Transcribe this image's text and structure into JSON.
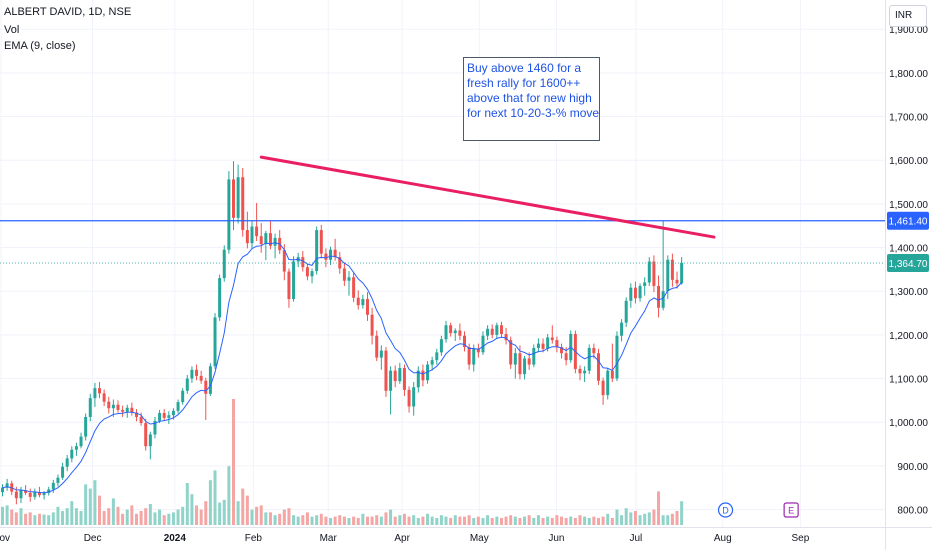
{
  "header": {
    "symbol_line": "ALBERT DAVID, 1D, NSE",
    "volume_label": "Vol",
    "ema_label": "EMA (9, close)"
  },
  "currency": "INR",
  "note": {
    "lines": [
      "Buy above 1460 for a",
      "fresh rally for 1600++",
      "above that for new high",
      "for next 10-20-3-% move"
    ]
  },
  "colors": {
    "up": "#26a69a",
    "down": "#ef5350",
    "vol_up": "#8fd3c9",
    "vol_down": "#f5a5a3",
    "ema": "#2962ff",
    "resistance_line": "#2962ff",
    "trend_line": "#e91e63",
    "last_price_label": "#26a69a",
    "resistance_label": "#2962ff",
    "grid": "#f0f3fa",
    "axis_text": "#131722"
  },
  "chart_data": {
    "type": "candlestick",
    "title": "ALBERT DAVID, 1D, NSE",
    "y_axis": {
      "min": 760,
      "max": 1960,
      "ticks": [
        800,
        900,
        1000,
        1100,
        1200,
        1300,
        1400,
        1500,
        1600,
        1700,
        1800,
        1900
      ],
      "tick_labels": [
        "800.00",
        "900.00",
        "1,000.00",
        "1,100.00",
        "1,200.00",
        "1,300.00",
        "1,400.00",
        "1,500.00",
        "1,600.00",
        "1,700.00",
        "1,800.00",
        "1,900.00"
      ]
    },
    "x_axis": {
      "labels": [
        "Nov",
        "Dec",
        "2024",
        "Feb",
        "Mar",
        "Apr",
        "May",
        "Jun",
        "Jul",
        "Aug",
        "Sep"
      ],
      "label_positions": [
        -0.3,
        19.5,
        37.3,
        54.3,
        70.5,
        86.5,
        103.2,
        119.9,
        137.1,
        155.9,
        172.7
      ]
    },
    "horizontal_line": {
      "value": 1461.4,
      "label": "1,461.40"
    },
    "last_price": {
      "value": 1364.7,
      "label": "1,364.70"
    },
    "trend_line": {
      "from": {
        "bar": 56,
        "value": 1607
      },
      "to": {
        "bar": 154,
        "value": 1424
      }
    },
    "events": [
      {
        "bar": 156.5,
        "letter": "D",
        "color": "#2962ff"
      },
      {
        "bar": 170.7,
        "letter": "E",
        "color": "#9c27b0"
      }
    ],
    "candles": [
      [
        840,
        858,
        830,
        850
      ],
      [
        850,
        870,
        843,
        860
      ],
      [
        860,
        866,
        833,
        841
      ],
      [
        841,
        852,
        812,
        826
      ],
      [
        826,
        852,
        815,
        844
      ],
      [
        844,
        856,
        833,
        838
      ],
      [
        838,
        848,
        818,
        829
      ],
      [
        829,
        848,
        823,
        840
      ],
      [
        840,
        852,
        828,
        833
      ],
      [
        833,
        842,
        823,
        838
      ],
      [
        838,
        852,
        832,
        846
      ],
      [
        846,
        868,
        838,
        861
      ],
      [
        861,
        880,
        853,
        873
      ],
      [
        873,
        907,
        868,
        898
      ],
      [
        898,
        925,
        888,
        917
      ],
      [
        917,
        945,
        908,
        937
      ],
      [
        937,
        953,
        923,
        945
      ],
      [
        945,
        976,
        940,
        967
      ],
      [
        967,
        1020,
        958,
        1012
      ],
      [
        1012,
        1065,
        1002,
        1055
      ],
      [
        1055,
        1090,
        1035,
        1078
      ],
      [
        1078,
        1092,
        1055,
        1066
      ],
      [
        1066,
        1075,
        1037,
        1047
      ],
      [
        1047,
        1058,
        1020,
        1032
      ],
      [
        1032,
        1052,
        1012,
        1040
      ],
      [
        1040,
        1050,
        1022,
        1028
      ],
      [
        1028,
        1038,
        1012,
        1024
      ],
      [
        1024,
        1040,
        1010,
        1033
      ],
      [
        1033,
        1045,
        1015,
        1022
      ],
      [
        1022,
        1030,
        1002,
        1012
      ],
      [
        1012,
        1022,
        992,
        998
      ],
      [
        998,
        1008,
        935,
        945
      ],
      [
        945,
        978,
        915,
        972
      ],
      [
        972,
        1012,
        963,
        1003
      ],
      [
        1003,
        1028,
        998,
        1021
      ],
      [
        1021,
        1030,
        1003,
        1010
      ],
      [
        1010,
        1025,
        996,
        1016
      ],
      [
        1016,
        1032,
        1006,
        1026
      ],
      [
        1026,
        1052,
        1020,
        1046
      ],
      [
        1046,
        1078,
        1040,
        1072
      ],
      [
        1072,
        1108,
        1065,
        1100
      ],
      [
        1100,
        1128,
        1090,
        1120
      ],
      [
        1120,
        1132,
        1096,
        1106
      ],
      [
        1106,
        1118,
        1088,
        1095
      ],
      [
        1095,
        1102,
        1005,
        1065
      ],
      [
        1065,
        1135,
        1060,
        1128
      ],
      [
        1128,
        1250,
        1122,
        1240
      ],
      [
        1240,
        1338,
        1232,
        1330
      ],
      [
        1330,
        1405,
        1322,
        1395
      ],
      [
        1395,
        1575,
        1386,
        1556
      ],
      [
        1556,
        1598,
        1440,
        1468
      ],
      [
        1468,
        1590,
        1455,
        1561
      ],
      [
        1561,
        1582,
        1425,
        1440
      ],
      [
        1440,
        1482,
        1398,
        1410
      ],
      [
        1410,
        1460,
        1396,
        1448
      ],
      [
        1448,
        1502,
        1415,
        1426
      ],
      [
        1426,
        1456,
        1388,
        1408
      ],
      [
        1408,
        1438,
        1371,
        1433
      ],
      [
        1433,
        1462,
        1396,
        1404
      ],
      [
        1404,
        1432,
        1375,
        1422
      ],
      [
        1422,
        1440,
        1385,
        1394
      ],
      [
        1394,
        1408,
        1325,
        1345
      ],
      [
        1345,
        1352,
        1262,
        1282
      ],
      [
        1282,
        1380,
        1276,
        1368
      ],
      [
        1368,
        1388,
        1355,
        1378
      ],
      [
        1378,
        1392,
        1345,
        1355
      ],
      [
        1355,
        1362,
        1325,
        1334
      ],
      [
        1334,
        1352,
        1318,
        1346
      ],
      [
        1346,
        1448,
        1338,
        1440
      ],
      [
        1440,
        1452,
        1375,
        1386
      ],
      [
        1386,
        1398,
        1355,
        1372
      ],
      [
        1372,
        1402,
        1360,
        1395
      ],
      [
        1395,
        1420,
        1370,
        1378
      ],
      [
        1378,
        1390,
        1340,
        1352
      ],
      [
        1352,
        1366,
        1312,
        1324
      ],
      [
        1324,
        1346,
        1290,
        1332
      ],
      [
        1332,
        1342,
        1275,
        1285
      ],
      [
        1285,
        1302,
        1258,
        1268
      ],
      [
        1268,
        1292,
        1260,
        1282
      ],
      [
        1282,
        1298,
        1232,
        1246
      ],
      [
        1246,
        1262,
        1178,
        1198
      ],
      [
        1198,
        1210,
        1140,
        1148
      ],
      [
        1148,
        1176,
        1120,
        1164
      ],
      [
        1164,
        1172,
        1058,
        1072
      ],
      [
        1072,
        1128,
        1018,
        1118
      ],
      [
        1118,
        1130,
        1080,
        1094
      ],
      [
        1094,
        1136,
        1088,
        1124
      ],
      [
        1124,
        1132,
        1060,
        1074
      ],
      [
        1074,
        1082,
        1022,
        1036
      ],
      [
        1036,
        1092,
        1015,
        1080
      ],
      [
        1080,
        1128,
        1068,
        1118
      ],
      [
        1118,
        1132,
        1082,
        1096
      ],
      [
        1096,
        1140,
        1088,
        1132
      ],
      [
        1132,
        1150,
        1118,
        1142
      ],
      [
        1142,
        1168,
        1132,
        1160
      ],
      [
        1160,
        1198,
        1152,
        1190
      ],
      [
        1190,
        1232,
        1182,
        1222
      ],
      [
        1222,
        1228,
        1196,
        1204
      ],
      [
        1204,
        1215,
        1186,
        1210
      ],
      [
        1210,
        1226,
        1188,
        1198
      ],
      [
        1198,
        1208,
        1162,
        1172
      ],
      [
        1172,
        1180,
        1120,
        1132
      ],
      [
        1132,
        1178,
        1116,
        1168
      ],
      [
        1168,
        1180,
        1148,
        1160
      ],
      [
        1160,
        1208,
        1154,
        1198
      ],
      [
        1198,
        1222,
        1188,
        1214
      ],
      [
        1214,
        1224,
        1192,
        1200
      ],
      [
        1200,
        1228,
        1190,
        1222
      ],
      [
        1222,
        1230,
        1194,
        1202
      ],
      [
        1202,
        1216,
        1178,
        1188
      ],
      [
        1188,
        1196,
        1122,
        1132
      ],
      [
        1132,
        1170,
        1100,
        1158
      ],
      [
        1158,
        1176,
        1098,
        1110
      ],
      [
        1110,
        1152,
        1098,
        1146
      ],
      [
        1146,
        1160,
        1120,
        1132
      ],
      [
        1132,
        1178,
        1126,
        1170
      ],
      [
        1170,
        1192,
        1160,
        1180
      ],
      [
        1180,
        1192,
        1160,
        1168
      ],
      [
        1168,
        1202,
        1162,
        1194
      ],
      [
        1194,
        1222,
        1180,
        1188
      ],
      [
        1188,
        1196,
        1160,
        1172
      ],
      [
        1172,
        1180,
        1146,
        1158
      ],
      [
        1158,
        1172,
        1130,
        1142
      ],
      [
        1142,
        1210,
        1136,
        1202
      ],
      [
        1202,
        1210,
        1112,
        1122
      ],
      [
        1122,
        1130,
        1096,
        1112
      ],
      [
        1112,
        1128,
        1092,
        1118
      ],
      [
        1118,
        1178,
        1110,
        1170
      ],
      [
        1170,
        1180,
        1146,
        1158
      ],
      [
        1158,
        1168,
        1085,
        1095
      ],
      [
        1095,
        1102,
        1040,
        1062
      ],
      [
        1062,
        1124,
        1052,
        1118
      ],
      [
        1118,
        1180,
        1092,
        1100
      ],
      [
        1100,
        1208,
        1094,
        1198
      ],
      [
        1198,
        1236,
        1185,
        1228
      ],
      [
        1228,
        1286,
        1218,
        1278
      ],
      [
        1278,
        1318,
        1262,
        1308
      ],
      [
        1308,
        1322,
        1272,
        1284
      ],
      [
        1284,
        1318,
        1276,
        1312
      ],
      [
        1312,
        1332,
        1290,
        1320
      ],
      [
        1320,
        1378,
        1312,
        1368
      ],
      [
        1368,
        1382,
        1298,
        1312
      ],
      [
        1312,
        1336,
        1240,
        1262
      ],
      [
        1262,
        1462,
        1256,
        1300
      ],
      [
        1300,
        1382,
        1282,
        1372
      ],
      [
        1372,
        1386,
        1310,
        1326
      ],
      [
        1326,
        1345,
        1306,
        1318
      ],
      [
        1318,
        1378,
        1315,
        1365
      ]
    ],
    "volumes": [
      26,
      28,
      22,
      18,
      24,
      16,
      18,
      14,
      16,
      15,
      14,
      18,
      26,
      20,
      24,
      34,
      24,
      20,
      58,
      52,
      64,
      42,
      20,
      24,
      38,
      26,
      16,
      22,
      28,
      16,
      20,
      24,
      30,
      18,
      22,
      14,
      16,
      18,
      22,
      26,
      60,
      44,
      28,
      22,
      34,
      64,
      78,
      32,
      36,
      84,
      180,
      34,
      52,
      42,
      22,
      26,
      28,
      18,
      18,
      14,
      16,
      22,
      24,
      14,
      12,
      14,
      18,
      12,
      14,
      16,
      12,
      10,
      12,
      14,
      12,
      10,
      12,
      10,
      16,
      12,
      12,
      14,
      12,
      18,
      22,
      12,
      14,
      16,
      12,
      14,
      10,
      12,
      16,
      12,
      10,
      14,
      12,
      10,
      14,
      12,
      12,
      14,
      10,
      12,
      10,
      14,
      10,
      12,
      10,
      12,
      14,
      12,
      10,
      12,
      14,
      10,
      14,
      10,
      12,
      10,
      14,
      12,
      10,
      12,
      10,
      14,
      12,
      10,
      12,
      10,
      12,
      16,
      10,
      22,
      14,
      24,
      18,
      20,
      14,
      16,
      18,
      22,
      48,
      14,
      14,
      16,
      20,
      34
    ]
  }
}
